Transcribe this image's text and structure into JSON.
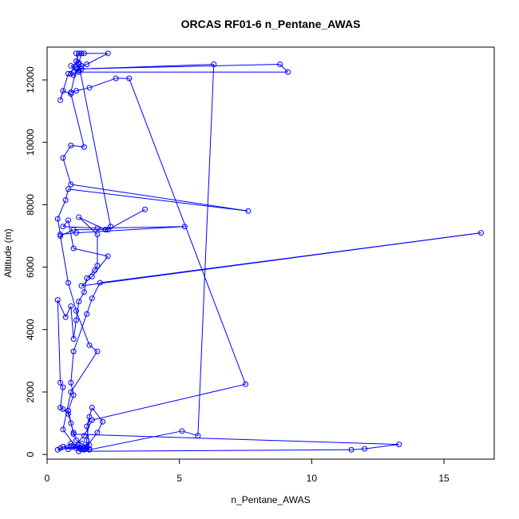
{
  "chart_data": {
    "type": "line",
    "title": "ORCAS RF01-6 n_Pentane_AWAS",
    "xlabel": "n_Pentane_AWAS",
    "ylabel": "Altitude (m)",
    "xlim": [
      0,
      16.9
    ],
    "ylim": [
      -150,
      13050
    ],
    "x_ticks": [
      0,
      5,
      10,
      15
    ],
    "y_ticks": [
      0,
      2000,
      4000,
      6000,
      8000,
      10000,
      12000
    ],
    "grid": false,
    "legend": "none",
    "series": [
      {
        "color": "#0000ff",
        "marker": "open-circle",
        "points": [
          [
            3.7,
            7850
          ],
          [
            2.3,
            7200
          ],
          [
            1.0,
            7200
          ],
          [
            0.5,
            7000
          ],
          [
            0.8,
            5500
          ],
          [
            1.1,
            4600
          ],
          [
            1.6,
            3500
          ],
          [
            1.9,
            3300
          ],
          [
            0.9,
            2000
          ],
          [
            0.6,
            800
          ],
          [
            1.2,
            100
          ],
          [
            11.5,
            150
          ],
          [
            12.0,
            180
          ],
          [
            13.3,
            320
          ],
          [
            1.0,
            650
          ],
          [
            0.8,
            1400
          ],
          [
            1.0,
            1900
          ],
          [
            0.9,
            2300
          ],
          [
            1.0,
            3300
          ],
          [
            1.5,
            4500
          ],
          [
            1.7,
            5000
          ],
          [
            2.0,
            5500
          ],
          [
            16.4,
            7100
          ],
          [
            1.3,
            5400
          ],
          [
            1.7,
            5700
          ],
          [
            2.3,
            6350
          ],
          [
            1.0,
            6600
          ],
          [
            0.8,
            7500
          ],
          [
            0.6,
            7300
          ],
          [
            1.9,
            7250
          ],
          [
            5.2,
            7300
          ],
          [
            1.1,
            7100
          ],
          [
            0.5,
            7050
          ],
          [
            0.4,
            7550
          ],
          [
            0.7,
            8150
          ],
          [
            0.8,
            8500
          ],
          [
            7.6,
            7800
          ],
          [
            0.9,
            8650
          ],
          [
            0.6,
            9500
          ],
          [
            0.9,
            9900
          ],
          [
            1.4,
            9850
          ],
          [
            0.9,
            11550
          ],
          [
            0.6,
            11650
          ],
          [
            0.5,
            11350
          ],
          [
            0.8,
            12200
          ],
          [
            1.1,
            12400
          ],
          [
            1.3,
            12450
          ],
          [
            1.5,
            12500
          ],
          [
            2.3,
            12850
          ],
          [
            1.4,
            12850
          ],
          [
            1.3,
            12850
          ],
          [
            1.2,
            12850
          ],
          [
            1.1,
            12600
          ],
          [
            0.9,
            12200
          ],
          [
            1.0,
            12150
          ],
          [
            1.2,
            12300
          ],
          [
            1.3,
            12350
          ],
          [
            6.3,
            12500
          ],
          [
            5.7,
            600
          ],
          [
            5.1,
            750
          ],
          [
            1.6,
            150
          ],
          [
            1.4,
            200
          ],
          [
            1.2,
            300
          ],
          [
            0.9,
            350
          ],
          [
            0.5,
            200
          ],
          [
            0.4,
            150
          ],
          [
            1.6,
            300
          ],
          [
            1.5,
            900
          ],
          [
            1.7,
            1500
          ],
          [
            2.1,
            1050
          ],
          [
            1.9,
            700
          ],
          [
            1.4,
            150
          ],
          [
            1.2,
            200
          ],
          [
            1.0,
            250
          ],
          [
            1.4,
            600
          ],
          [
            1.7,
            1100
          ],
          [
            7.5,
            2250
          ],
          [
            3.1,
            12050
          ],
          [
            2.6,
            12050
          ],
          [
            1.6,
            11750
          ],
          [
            1.1,
            11650
          ],
          [
            0.9,
            11600
          ],
          [
            1.1,
            12350
          ],
          [
            8.8,
            12500
          ],
          [
            9.1,
            12250
          ],
          [
            1.2,
            12250
          ],
          [
            0.9,
            12450
          ],
          [
            1.2,
            12550
          ],
          [
            1.3,
            12850
          ],
          [
            1.1,
            12850
          ],
          [
            1.2,
            12500
          ],
          [
            2.4,
            7300
          ],
          [
            2.2,
            7200
          ],
          [
            1.2,
            7600
          ],
          [
            1.9,
            7050
          ],
          [
            1.9,
            6050
          ],
          [
            1.8,
            5900
          ],
          [
            1.5,
            5650
          ],
          [
            1.4,
            5200
          ],
          [
            1.2,
            4900
          ],
          [
            1.1,
            4300
          ],
          [
            1.0,
            3700
          ],
          [
            0.9,
            4750
          ],
          [
            0.7,
            4400
          ],
          [
            0.4,
            4950
          ],
          [
            0.5,
            2300
          ],
          [
            0.6,
            2150
          ],
          [
            0.5,
            1500
          ],
          [
            0.6,
            1450
          ],
          [
            0.8,
            1300
          ],
          [
            0.9,
            1000
          ],
          [
            1.0,
            700
          ],
          [
            1.1,
            450
          ],
          [
            1.3,
            350
          ],
          [
            1.5,
            250
          ],
          [
            1.3,
            180
          ],
          [
            1.1,
            200
          ],
          [
            0.6,
            250
          ],
          [
            0.8,
            170
          ],
          [
            0.9,
            240
          ],
          [
            1.6,
            170
          ],
          [
            1.5,
            190
          ],
          [
            1.5,
            450
          ],
          [
            1.6,
            1200
          ]
        ]
      }
    ]
  }
}
